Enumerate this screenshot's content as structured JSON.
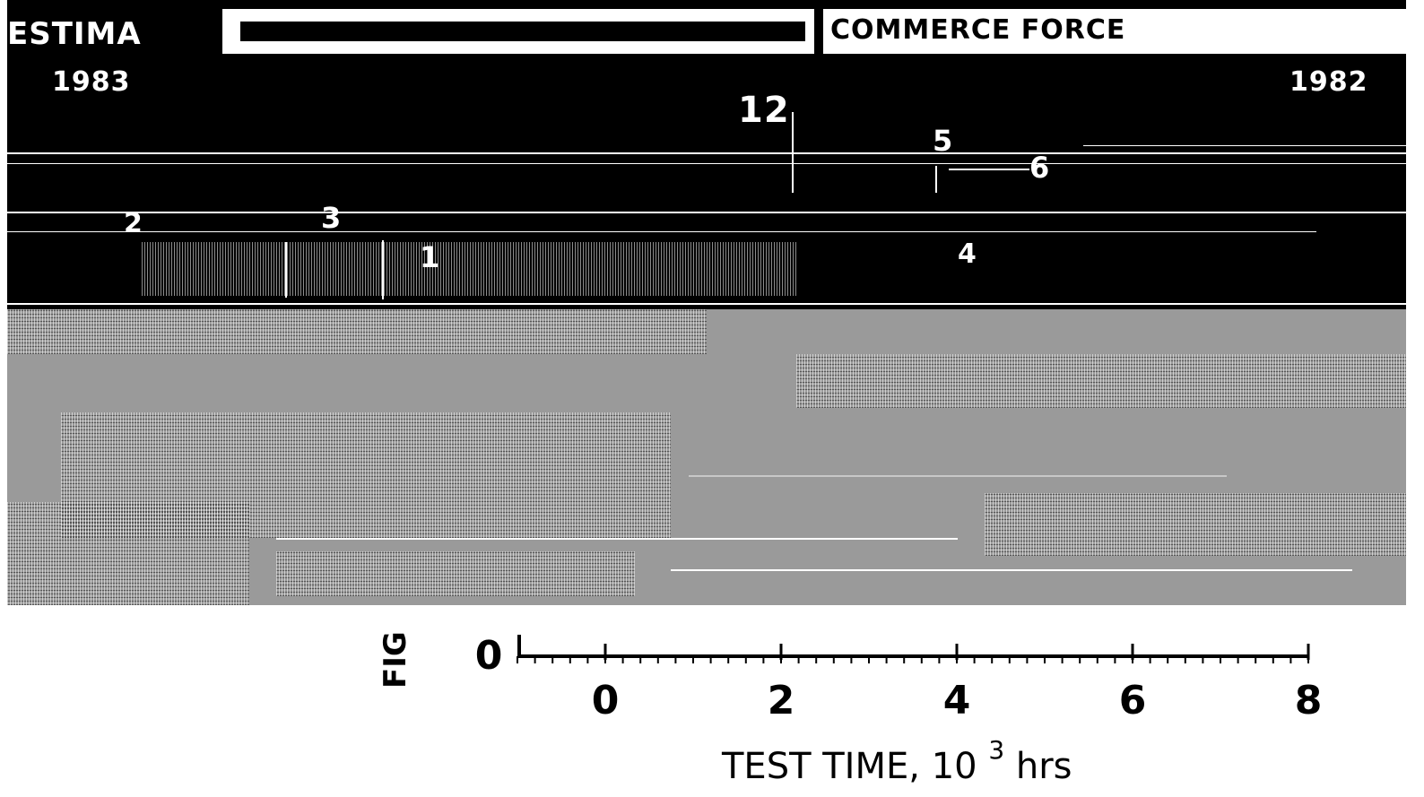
{
  "scan": {
    "header_left": "ESTIMA",
    "header_right": "COMMERCE FORCE",
    "year_left": "1983",
    "year_right": "1982",
    "curve_labels": [
      "12",
      "5",
      "6",
      "2",
      "3",
      "1",
      "4"
    ]
  },
  "figure_label": "FIG",
  "colors": {
    "ink": "#000000",
    "paper": "#ffffff",
    "scan_gray": "#9a9a9a"
  },
  "chart_data": {
    "type": "line",
    "title": "",
    "xlabel": "TEST TIME, 10",
    "xlabel_superscript": "3",
    "xlabel_unit": "hrs",
    "ylabel": "",
    "xlim": [
      -1,
      8
    ],
    "x_ticks": [
      0,
      2,
      4,
      6,
      8
    ],
    "x_tick_labels": [
      "0",
      "2",
      "4",
      "6",
      "8"
    ],
    "x_minor_tick_step": 0.2,
    "y_ticks": [
      0
    ],
    "y_tick_labels": [
      "0"
    ],
    "grid": false,
    "series": []
  }
}
